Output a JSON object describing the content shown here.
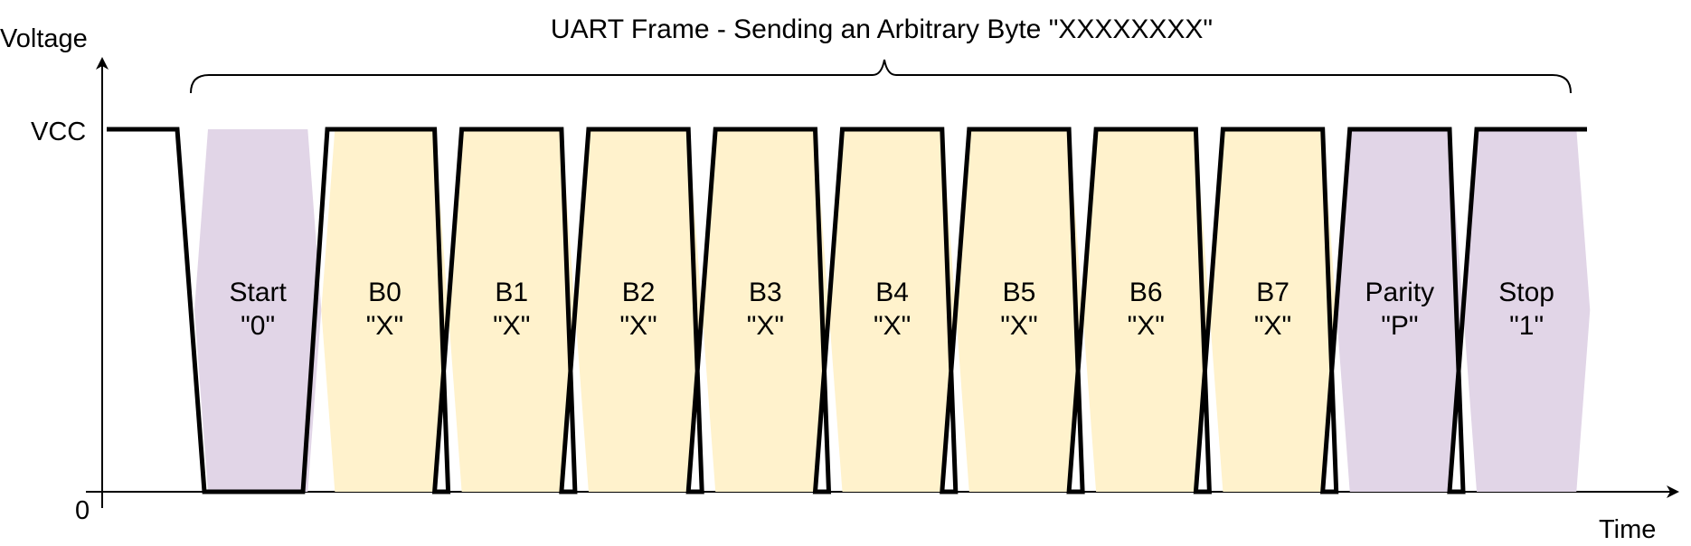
{
  "title": "UART Frame - Sending an Arbitrary Byte \"XXXXXXXX\"",
  "axes": {
    "y_label": "Voltage",
    "x_label": "Time",
    "high_label": "VCC",
    "low_label": "0"
  },
  "colors": {
    "control_bit_fill": "#e1d5e7",
    "data_bit_fill": "#fff2cc",
    "line": "#000000"
  },
  "bits": [
    {
      "name": "Start",
      "value": "\"0\"",
      "kind": "control",
      "level": "low"
    },
    {
      "name": "B0",
      "value": "\"X\"",
      "kind": "data",
      "level": "high"
    },
    {
      "name": "B1",
      "value": "\"X\"",
      "kind": "data",
      "level": "high"
    },
    {
      "name": "B2",
      "value": "\"X\"",
      "kind": "data",
      "level": "high"
    },
    {
      "name": "B3",
      "value": "\"X\"",
      "kind": "data",
      "level": "high"
    },
    {
      "name": "B4",
      "value": "\"X\"",
      "kind": "data",
      "level": "high"
    },
    {
      "name": "B5",
      "value": "\"X\"",
      "kind": "data",
      "level": "high"
    },
    {
      "name": "B6",
      "value": "\"X\"",
      "kind": "data",
      "level": "high"
    },
    {
      "name": "B7",
      "value": "\"X\"",
      "kind": "data",
      "level": "high"
    },
    {
      "name": "Parity",
      "value": "\"P\"",
      "kind": "control",
      "level": "high"
    },
    {
      "name": "Stop",
      "value": "\"1\"",
      "kind": "control",
      "level": "high"
    }
  ]
}
